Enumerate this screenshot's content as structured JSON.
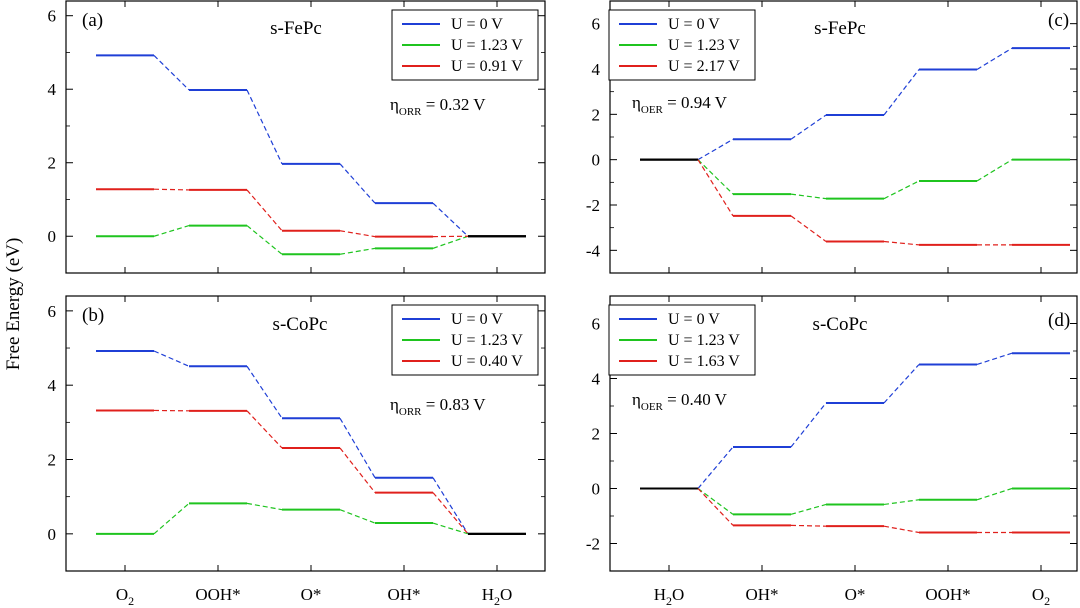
{
  "ylabel": "Free Energy (eV)",
  "species_labels": {
    "O2": {
      "base": "O",
      "sub": "2"
    },
    "OOH": {
      "base": "OOH*",
      "sub": ""
    },
    "O": {
      "base": "O*",
      "sub": ""
    },
    "OH": {
      "base": "OH*",
      "sub": ""
    },
    "H2O": {
      "base": "H",
      "sub": "2",
      "tail": "O"
    }
  },
  "colors": {
    "blue": "#1f3fd6",
    "green": "#1fc41f",
    "red": "#e0201c",
    "black": "#000000"
  },
  "chart_data": [
    {
      "id": "a",
      "type": "line",
      "panel_tag": "(a)",
      "title": "s-FePc",
      "overpotential": {
        "symbol": "η",
        "sub": "ORR",
        "value": "= 0.32 V"
      },
      "ylim": [
        -1,
        6.4
      ],
      "yticks": [
        0,
        2,
        4,
        6
      ],
      "show_xticks": false,
      "x": [
        "O2",
        "OOH",
        "O",
        "OH",
        "H2O"
      ],
      "legend_position": "top-right",
      "series": [
        {
          "name": "U = 0 V",
          "color": "blue",
          "values": [
            4.92,
            3.98,
            1.97,
            0.9,
            0.0
          ]
        },
        {
          "name": "U = 1.23 V",
          "color": "green",
          "values": [
            0.0,
            0.29,
            -0.49,
            -0.33,
            0.0
          ]
        },
        {
          "name": "U = 0.91 V",
          "color": "red",
          "values": [
            1.28,
            1.26,
            0.15,
            -0.01,
            0.0
          ]
        }
      ]
    },
    {
      "id": "b",
      "type": "line",
      "panel_tag": "(b)",
      "title": "s-CoPc",
      "overpotential": {
        "symbol": "η",
        "sub": "ORR",
        "value": "= 0.83 V"
      },
      "ylim": [
        -1,
        6.4
      ],
      "yticks": [
        0,
        2,
        4,
        6
      ],
      "show_xticks": true,
      "x": [
        "O2",
        "OOH",
        "O",
        "OH",
        "H2O"
      ],
      "legend_position": "top-right",
      "series": [
        {
          "name": "U = 0 V",
          "color": "blue",
          "values": [
            4.92,
            4.51,
            3.11,
            1.51,
            0.0
          ]
        },
        {
          "name": "U = 1.23 V",
          "color": "green",
          "values": [
            0.0,
            0.82,
            0.65,
            0.29,
            0.0
          ]
        },
        {
          "name": "U = 0.40 V",
          "color": "red",
          "values": [
            3.32,
            3.31,
            2.31,
            1.11,
            0.0
          ]
        }
      ]
    },
    {
      "id": "c",
      "type": "line",
      "panel_tag": "(c)",
      "title": "s-FePc",
      "overpotential": {
        "symbol": "η",
        "sub": "OER",
        "value": "= 0.94 V"
      },
      "ylim": [
        -5,
        7
      ],
      "yticks": [
        -4,
        -2,
        0,
        2,
        4,
        6
      ],
      "show_xticks": false,
      "x": [
        "H2O",
        "OH",
        "O",
        "OOH",
        "O2"
      ],
      "legend_position": "top-left",
      "series": [
        {
          "name": "U = 0 V",
          "color": "blue",
          "values": [
            0.0,
            0.9,
            1.97,
            3.98,
            4.92
          ]
        },
        {
          "name": "U = 1.23 V",
          "color": "green",
          "values": [
            0.0,
            -1.52,
            -1.72,
            -0.94,
            0.0
          ]
        },
        {
          "name": "U = 2.17 V",
          "color": "red",
          "values": [
            0.0,
            -2.48,
            -3.61,
            -3.76,
            -3.76
          ]
        }
      ]
    },
    {
      "id": "d",
      "type": "line",
      "panel_tag": "(d)",
      "title": "s-CoPc",
      "overpotential": {
        "symbol": "η",
        "sub": "OER",
        "value": "= 0.40 V"
      },
      "ylim": [
        -3,
        7
      ],
      "yticks": [
        -2,
        0,
        2,
        4,
        6
      ],
      "show_xticks": true,
      "x": [
        "H2O",
        "OH",
        "O",
        "OOH",
        "O2"
      ],
      "legend_position": "top-left",
      "series": [
        {
          "name": "U = 0 V",
          "color": "blue",
          "values": [
            0.0,
            1.51,
            3.11,
            4.51,
            4.92
          ]
        },
        {
          "name": "U = 1.23 V",
          "color": "green",
          "values": [
            0.0,
            -0.94,
            -0.58,
            -0.41,
            0.0
          ]
        },
        {
          "name": "U = 1.63 V",
          "color": "red",
          "values": [
            0.0,
            -1.34,
            -1.37,
            -1.6,
            -1.6
          ]
        }
      ]
    }
  ]
}
